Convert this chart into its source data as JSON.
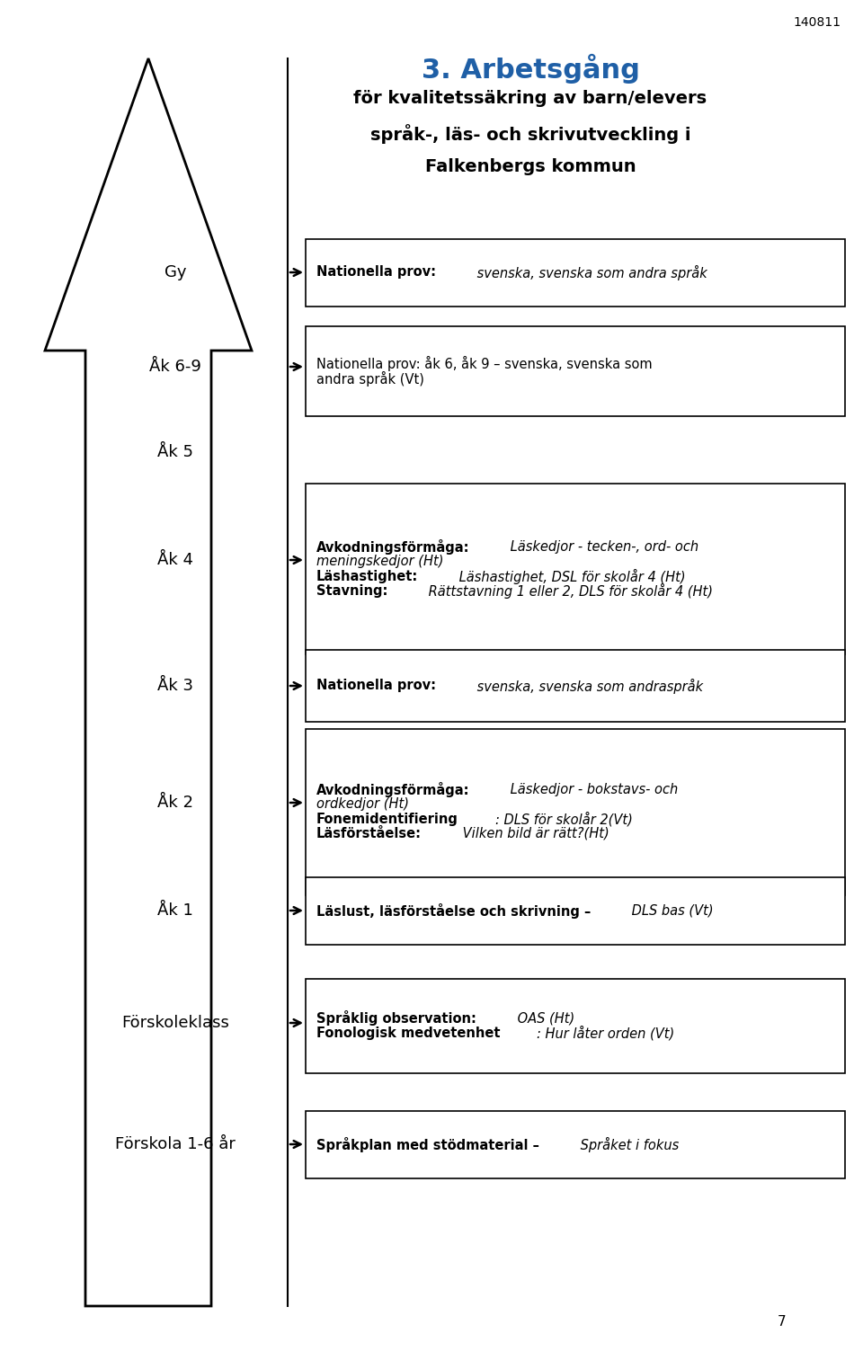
{
  "title": "3. Arbetsgång",
  "subtitle_lines": [
    "för kvalitetssäkring av barn/elevers",
    "språk-, läs- och skrivutveckling i",
    "Falkenbergs kommun"
  ],
  "page_number": "140811",
  "page_footer": "7",
  "title_color": "#1F5FA6",
  "rows": [
    {
      "label": "Gy",
      "segments": [
        [
          {
            "text": "Nationella prov:",
            "bold": true,
            "italic": false
          },
          {
            "text": " svenska, svenska som andra språk",
            "bold": false,
            "italic": true
          }
        ]
      ],
      "has_box": true
    },
    {
      "label": "Åk 6-9",
      "segments": [
        [
          {
            "text": "Nationella prov: åk 6, åk 9 – svenska, svenska som\nandra språk (Vt)",
            "bold": false,
            "italic": false,
            "mixed": true,
            "bold_part": "Nationella prov: åk 6, åk 9 –",
            "italic_part": " svenska, svenska som\nandra språk (Vt)"
          }
        ]
      ],
      "has_box": true
    },
    {
      "label": "Åk 5",
      "segments": null,
      "has_box": false
    },
    {
      "label": "Åk 4",
      "segments": [
        [
          {
            "text": "Avkodningsförmåga:",
            "bold": true,
            "italic": false
          },
          {
            "text": " Läskedjor - tecken-, ord- och\nmeningskedjor (Ht)",
            "bold": false,
            "italic": true
          }
        ],
        [
          {
            "text": "Läshastighet:",
            "bold": true,
            "italic": false
          },
          {
            "text": " Läshastighet, DSL för skolår 4 (Ht)",
            "bold": false,
            "italic": true
          }
        ],
        [
          {
            "text": "Stavning:",
            "bold": true,
            "italic": false
          },
          {
            "text": " Rättstavning 1 eller 2, DLS för skolår 4 (Ht)",
            "bold": false,
            "italic": true
          }
        ]
      ],
      "has_box": true
    },
    {
      "label": "Åk 3",
      "segments": [
        [
          {
            "text": "Nationella prov:",
            "bold": true,
            "italic": false
          },
          {
            "text": " svenska, svenska som andraspråk",
            "bold": false,
            "italic": true
          }
        ]
      ],
      "has_box": true
    },
    {
      "label": "Åk 2",
      "segments": [
        [
          {
            "text": "Avkodningsförmåga:",
            "bold": true,
            "italic": false
          },
          {
            "text": " Läskedjor - bokstavs- och\nordkedjor (Ht)",
            "bold": false,
            "italic": true
          }
        ],
        [
          {
            "text": "Fonemidentifiering",
            "bold": true,
            "italic": false
          },
          {
            "text": ": DLS för skolår 2(Vt)",
            "bold": false,
            "italic": true
          }
        ],
        [
          {
            "text": "Läsförståelse:",
            "bold": true,
            "italic": false
          },
          {
            "text": " Vilken bild är rätt?(Ht)",
            "bold": false,
            "italic": true
          }
        ]
      ],
      "has_box": true
    },
    {
      "label": "Åk 1",
      "segments": [
        [
          {
            "text": "Läslust, läsförståelse och skrivning –",
            "bold": true,
            "italic": false
          },
          {
            "text": " DLS bas (Vt)",
            "bold": false,
            "italic": true
          }
        ]
      ],
      "has_box": true
    },
    {
      "label": "Förskoleklass",
      "segments": [
        [
          {
            "text": "Språklig observation:",
            "bold": true,
            "italic": false
          },
          {
            "text": " OAS (Ht)",
            "bold": false,
            "italic": true
          }
        ],
        [
          {
            "text": "Fonologisk medvetenhet",
            "bold": true,
            "italic": false
          },
          {
            "text": ": Hur låter orden (Vt)",
            "bold": false,
            "italic": true
          }
        ]
      ],
      "has_box": true
    },
    {
      "label": "Förskola 1-6 år",
      "segments": [
        [
          {
            "text": "Språkplan med stödmaterial –",
            "bold": true,
            "italic": false
          },
          {
            "text": " Språket i fokus",
            "bold": false,
            "italic": true
          }
        ]
      ],
      "has_box": true
    }
  ]
}
